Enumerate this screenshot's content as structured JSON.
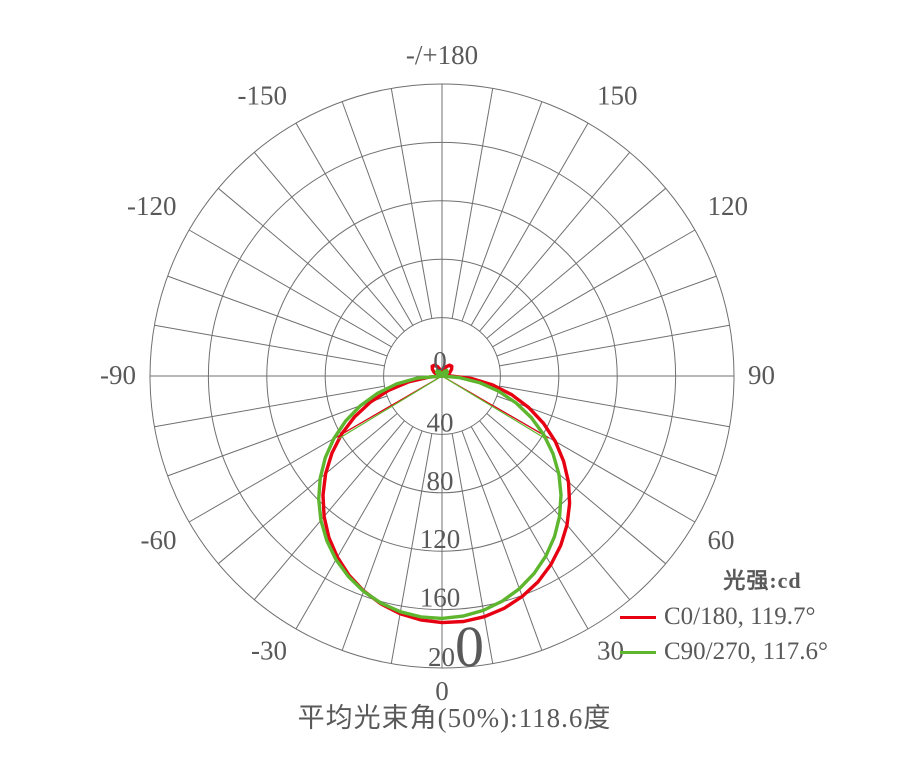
{
  "colors": {
    "c0_red": "#e60012",
    "c90_green": "#5eb52e",
    "grid": "#707070",
    "text": "#595959",
    "background": "#ffffff"
  },
  "chart_data": {
    "type": "line",
    "subtype": "polar-photometric",
    "title": "光强:cd",
    "caption": "平均光束角(50%):118.6度",
    "rmax": 200,
    "ring_values": [
      40,
      80,
      120,
      160,
      200
    ],
    "spoke_step_deg": 10,
    "grid_on": true,
    "legend_position": "bottom-right",
    "angle_labels": [
      {
        "angle": 180,
        "text": "-/+180"
      },
      {
        "angle": 150,
        "text": "150"
      },
      {
        "angle": 120,
        "text": "120"
      },
      {
        "angle": 90,
        "text": "90"
      },
      {
        "angle": 60,
        "text": "60"
      },
      {
        "angle": 30,
        "text": "30"
      },
      {
        "angle": 0,
        "text": "0"
      },
      {
        "angle": -30,
        "text": "-30"
      },
      {
        "angle": -60,
        "text": "-60"
      },
      {
        "angle": -90,
        "text": "-90"
      },
      {
        "angle": -120,
        "text": "-120"
      },
      {
        "angle": -150,
        "text": "-150"
      }
    ],
    "radial_ticks": [
      {
        "value": 0,
        "label": "0"
      },
      {
        "value": 40,
        "label": "40"
      },
      {
        "value": 80,
        "label": "80"
      },
      {
        "value": 120,
        "label": "120"
      },
      {
        "value": 160,
        "label": "160"
      },
      {
        "value": 200,
        "label": "20",
        "label_big": "0"
      }
    ],
    "legend": {
      "title": "光强:cd",
      "entries": [
        {
          "label": "C0/180, 119.7°"
        },
        {
          "label": "C90/270, 117.6°"
        }
      ]
    },
    "series": [
      {
        "name": "C0/180",
        "beam_angle_deg": 119.7,
        "half_angle_deg": 59.85,
        "half_value_cd": 84.5,
        "max_cd": 168.9,
        "color_key": "c0_red",
        "points": [
          [
            -180,
            0
          ],
          [
            -175,
            1.5
          ],
          [
            -165,
            4.5
          ],
          [
            -155,
            7
          ],
          [
            -145,
            9
          ],
          [
            -135,
            9.5
          ],
          [
            -125,
            8
          ],
          [
            -115,
            6
          ],
          [
            -105,
            4
          ],
          [
            -96,
            2
          ],
          [
            -92,
            0
          ],
          [
            -88,
            0
          ],
          [
            -85,
            8.8
          ],
          [
            -80,
            23.5
          ],
          [
            -75,
            38
          ],
          [
            -70,
            52.2
          ],
          [
            -65,
            66
          ],
          [
            -60,
            79.3
          ],
          [
            -55,
            92
          ],
          [
            -50,
            104.1
          ],
          [
            -45,
            115.3
          ],
          [
            -40,
            125.6
          ],
          [
            -35,
            135
          ],
          [
            -30,
            143.3
          ],
          [
            -25,
            150.6
          ],
          [
            -20,
            156.7
          ],
          [
            -15,
            161.6
          ],
          [
            -10,
            165.3
          ],
          [
            -5,
            167.7
          ],
          [
            0,
            168.9
          ],
          [
            5,
            168.8
          ],
          [
            10,
            167.4
          ],
          [
            15,
            164.7
          ],
          [
            20,
            160.7
          ],
          [
            25,
            155.6
          ],
          [
            30,
            149.2
          ],
          [
            35,
            141.7
          ],
          [
            40,
            133.2
          ],
          [
            45,
            123.6
          ],
          [
            50,
            113.1
          ],
          [
            55,
            101.7
          ],
          [
            60,
            89.6
          ],
          [
            65,
            76.7
          ],
          [
            70,
            63.3
          ],
          [
            75,
            49.4
          ],
          [
            80,
            35.1
          ],
          [
            85,
            20.6
          ],
          [
            90,
            5.9
          ],
          [
            92,
            0
          ],
          [
            96,
            2
          ],
          [
            105,
            4
          ],
          [
            115,
            6
          ],
          [
            125,
            8
          ],
          [
            135,
            9.5
          ],
          [
            145,
            9
          ],
          [
            155,
            7
          ],
          [
            165,
            4.5
          ],
          [
            175,
            1.5
          ],
          [
            180,
            0
          ]
        ]
      },
      {
        "name": "C90/270",
        "beam_angle_deg": 117.6,
        "half_angle_deg": 58.8,
        "half_value_cd": 83.0,
        "max_cd": 166.0,
        "color_key": "c90_green",
        "points": [
          [
            -180,
            0
          ],
          [
            -170,
            1.2
          ],
          [
            -155,
            3.5
          ],
          [
            -140,
            5
          ],
          [
            -125,
            4.5
          ],
          [
            -110,
            3
          ],
          [
            -95,
            1.5
          ],
          [
            -91,
            0
          ],
          [
            -85,
            17.3
          ],
          [
            -80,
            31.7
          ],
          [
            -75,
            45.7
          ],
          [
            -70,
            59.5
          ],
          [
            -65,
            72.8
          ],
          [
            -60,
            85.5
          ],
          [
            -55,
            97.6
          ],
          [
            -50,
            108.9
          ],
          [
            -45,
            119.4
          ],
          [
            -40,
            129
          ],
          [
            -35,
            137.6
          ],
          [
            -30,
            145.2
          ],
          [
            -25,
            151.6
          ],
          [
            -20,
            157
          ],
          [
            -15,
            161.1
          ],
          [
            -10,
            164
          ],
          [
            -5,
            165.6
          ],
          [
            0,
            166
          ],
          [
            5,
            165.1
          ],
          [
            10,
            163
          ],
          [
            15,
            159.6
          ],
          [
            20,
            155
          ],
          [
            25,
            149.2
          ],
          [
            30,
            142.3
          ],
          [
            35,
            134.3
          ],
          [
            40,
            125.3
          ],
          [
            45,
            115.3
          ],
          [
            50,
            104.5
          ],
          [
            55,
            92.8
          ],
          [
            60,
            80.5
          ],
          [
            65,
            67.5
          ],
          [
            70,
            54
          ],
          [
            75,
            40.2
          ],
          [
            80,
            26
          ],
          [
            85,
            11.6
          ],
          [
            89,
            0
          ],
          [
            95,
            1.5
          ],
          [
            110,
            3
          ],
          [
            125,
            4.5
          ],
          [
            140,
            5
          ],
          [
            155,
            3.5
          ],
          [
            170,
            1.2
          ],
          [
            180,
            0
          ]
        ]
      }
    ]
  }
}
